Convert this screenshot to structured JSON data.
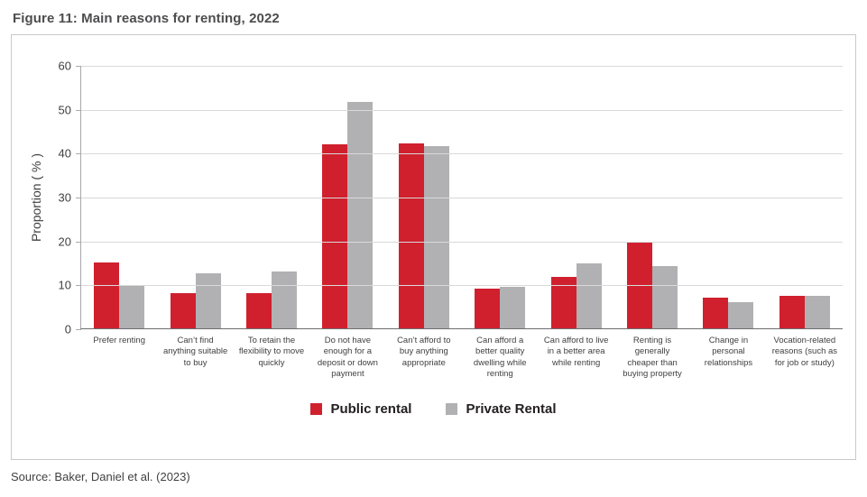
{
  "figure": {
    "title": "Figure 11: Main reasons for renting, 2022",
    "source": "Source: Baker, Daniel et al. (2023)"
  },
  "chart_data": {
    "type": "bar",
    "title": "Figure 11: Main reasons for renting, 2022",
    "xlabel": "",
    "ylabel": "Proportion ( % )",
    "ylim": [
      0,
      60
    ],
    "ytick_step": 10,
    "grid": true,
    "legend_position": "bottom-center",
    "categories": [
      "Prefer renting",
      "Can’t find anything suitable to buy",
      "To retain the flexibility to move quickly",
      "Do not have enough for a deposit or down payment",
      "Can’t afford to buy anything appropriate",
      "Can afford a better quality dwelling while renting",
      "Can afford to live in a better area while renting",
      "Renting is generally cheaper than buying property",
      "Change in personal relationships",
      "Vocation-related reasons (such as for job or study)"
    ],
    "series": [
      {
        "name": "Public rental",
        "color": "#d0202e",
        "values": [
          15,
          8,
          8,
          42,
          42.2,
          9,
          11.7,
          19.5,
          7,
          7.4
        ]
      },
      {
        "name": "Private Rental",
        "color": "#b1b1b3",
        "values": [
          9.8,
          12.5,
          13,
          51.5,
          41.6,
          9.5,
          14.7,
          14.2,
          6,
          7.3
        ]
      }
    ]
  }
}
